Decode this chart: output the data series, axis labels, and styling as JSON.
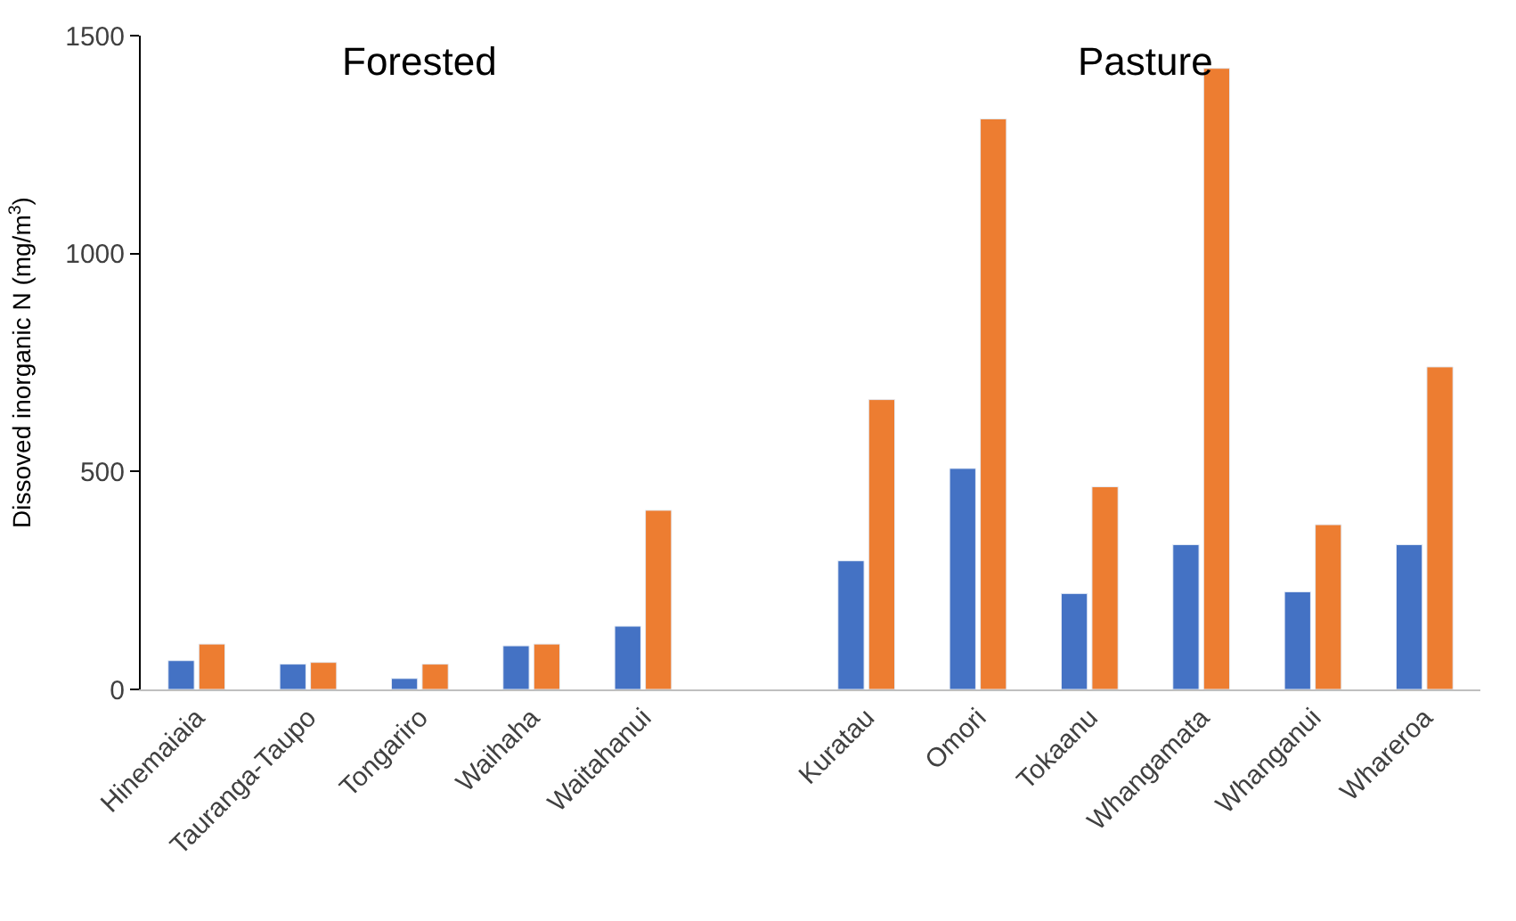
{
  "chart_data": {
    "type": "bar",
    "ylabel": "Dissoved inorganic N (mg/m$^{3}$)",
    "categories": [
      "Hinemaiaia",
      "Tauranga-Taupo",
      "Tongariro",
      "Waihaha",
      "Waitahanui",
      null,
      "Kuratau",
      "Omori",
      "Tokaanu",
      "Whangamata",
      "Whanganui",
      "Whareroa"
    ],
    "series": [
      {
        "color": "#4472c4",
        "values": [
          66,
          58,
          25,
          100,
          145,
          null,
          295,
          507,
          220,
          332,
          224,
          332
        ]
      },
      {
        "color": "#ed7d31",
        "values": [
          104,
          62,
          58,
          104,
          411,
          null,
          665,
          1309,
          465,
          1425,
          378,
          740
        ]
      }
    ],
    "ylim": [
      0,
      1500
    ],
    "yticks": [
      0,
      500,
      1000,
      1500
    ],
    "annotations": [
      "Forested",
      "Pasture"
    ]
  }
}
